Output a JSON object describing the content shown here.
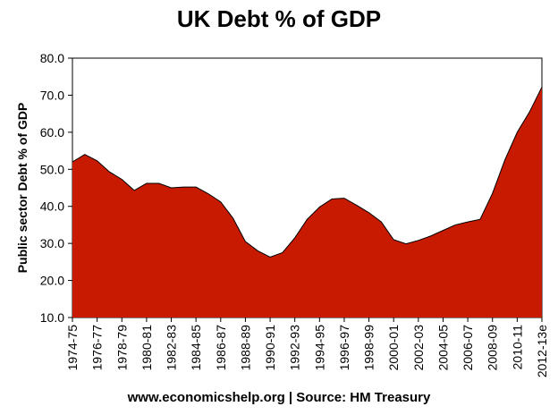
{
  "chart_data": {
    "type": "area",
    "title": "UK Debt % of GDP",
    "ylabel": "Public sector Debt % of GDP",
    "xlabel": "",
    "source": "www.economicshelp.org | Source: HM Treasury",
    "ylim": [
      10,
      80
    ],
    "yticks": [
      "10.0",
      "20.0",
      "30.0",
      "40.0",
      "50.0",
      "60.0",
      "70.0",
      "80.0"
    ],
    "x_tick_labels": [
      "1974-75",
      "1976-77",
      "1978-79",
      "1980-81",
      "1982-83",
      "1984-85",
      "1986-87",
      "1988-89",
      "1990-91",
      "1992-93",
      "1994-95",
      "1996-97",
      "1998-99",
      "2000-01",
      "2002-03",
      "2004-05",
      "2006-07",
      "2008-09",
      "2010-11",
      "2012-13e"
    ],
    "grid": false,
    "fill_color": "#c81a00",
    "categories": [
      "1974-75",
      "1975-76",
      "1976-77",
      "1977-78",
      "1978-79",
      "1979-80",
      "1980-81",
      "1981-82",
      "1982-83",
      "1983-84",
      "1984-85",
      "1985-86",
      "1986-87",
      "1987-88",
      "1988-89",
      "1989-90",
      "1990-91",
      "1991-92",
      "1992-93",
      "1993-94",
      "1994-95",
      "1995-96",
      "1996-97",
      "1997-98",
      "1998-99",
      "1999-00",
      "2000-01",
      "2001-02",
      "2002-03",
      "2003-04",
      "2004-05",
      "2005-06",
      "2006-07",
      "2007-08",
      "2008-09",
      "2009-10",
      "2010-11",
      "2011-12",
      "2012-13e"
    ],
    "values": [
      52.0,
      54.0,
      52.3,
      49.3,
      47.3,
      44.3,
      46.2,
      46.2,
      45.0,
      45.2,
      45.2,
      43.4,
      41.2,
      36.8,
      30.5,
      28.0,
      26.3,
      27.5,
      31.5,
      36.5,
      39.8,
      42.0,
      42.2,
      40.3,
      38.3,
      35.8,
      31.0,
      29.9,
      30.8,
      32.0,
      33.5,
      35.0,
      35.8,
      36.5,
      43.5,
      52.5,
      60.0,
      65.5,
      72.2
    ]
  }
}
